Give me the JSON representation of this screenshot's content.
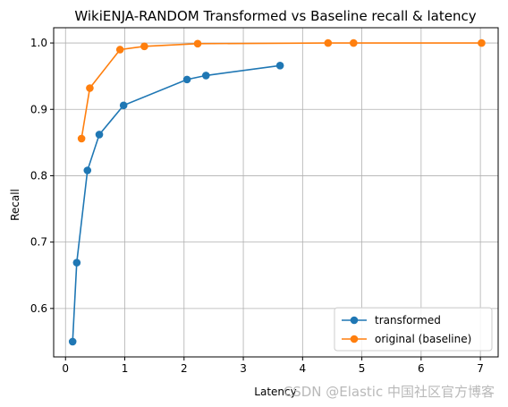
{
  "chart_data": {
    "type": "line",
    "title": "WikiENJA-RANDOM Transformed vs Baseline recall & latency",
    "xlabel": "Latency",
    "ylabel": "Recall",
    "xlim": [
      -0.2,
      7.3
    ],
    "ylim": [
      0.527,
      1.023
    ],
    "xticks": [
      0,
      1,
      2,
      3,
      4,
      5,
      6,
      7
    ],
    "yticks": [
      0.6,
      0.7,
      0.8,
      0.9,
      1.0
    ],
    "ytick_labels": [
      "0.6",
      "0.7",
      "0.8",
      "0.9",
      "1.0"
    ],
    "grid": true,
    "legend_position": "lower-right",
    "series": [
      {
        "name": "transformed",
        "color": "#1f77b4",
        "marker": "circle",
        "x": [
          0.12,
          0.19,
          0.37,
          0.57,
          0.98,
          2.05,
          2.37,
          3.62
        ],
        "y": [
          0.55,
          0.669,
          0.808,
          0.862,
          0.906,
          0.945,
          0.951,
          0.966
        ]
      },
      {
        "name": "original (baseline)",
        "color": "#ff7f0e",
        "marker": "circle",
        "x": [
          0.27,
          0.41,
          0.92,
          1.33,
          2.23,
          4.43,
          4.86,
          7.02
        ],
        "y": [
          0.856,
          0.932,
          0.99,
          0.995,
          0.999,
          1.0,
          1.0,
          1.0
        ]
      }
    ]
  },
  "watermark": "CSDN @Elastic 中国社区官方博客"
}
